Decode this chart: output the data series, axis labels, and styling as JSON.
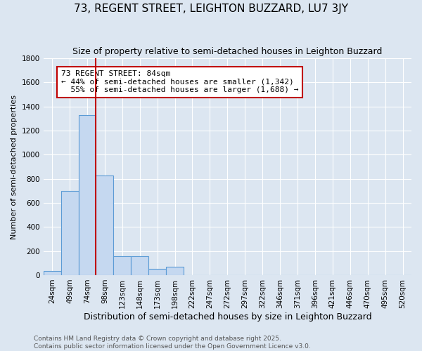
{
  "title": "73, REGENT STREET, LEIGHTON BUZZARD, LU7 3JY",
  "subtitle": "Size of property relative to semi-detached houses in Leighton Buzzard",
  "xlabel": "Distribution of semi-detached houses by size in Leighton Buzzard",
  "ylabel": "Number of semi-detached properties",
  "categories": [
    "24sqm",
    "49sqm",
    "74sqm",
    "98sqm",
    "123sqm",
    "148sqm",
    "173sqm",
    "198sqm",
    "222sqm",
    "247sqm",
    "272sqm",
    "297sqm",
    "322sqm",
    "346sqm",
    "371sqm",
    "396sqm",
    "421sqm",
    "446sqm",
    "470sqm",
    "495sqm",
    "520sqm"
  ],
  "values": [
    35,
    700,
    1330,
    830,
    160,
    155,
    55,
    70,
    0,
    0,
    0,
    0,
    0,
    0,
    0,
    0,
    0,
    0,
    0,
    0,
    0
  ],
  "bar_color": "#c5d8f0",
  "bar_edge_color": "#5b9bd5",
  "vline_color": "#c00000",
  "vline_x_index": 2.5,
  "annotation_line1": "73 REGENT STREET: 84sqm",
  "annotation_line2": "← 44% of semi-detached houses are smaller (1,342)",
  "annotation_line3": "  55% of semi-detached houses are larger (1,688) →",
  "annotation_box_color": "#ffffff",
  "annotation_box_edge": "#c00000",
  "ylim": [
    0,
    1800
  ],
  "yticks": [
    0,
    200,
    400,
    600,
    800,
    1000,
    1200,
    1400,
    1600,
    1800
  ],
  "bg_color": "#dce6f1",
  "footer": "Contains HM Land Registry data © Crown copyright and database right 2025.\nContains public sector information licensed under the Open Government Licence v3.0.",
  "title_fontsize": 11,
  "subtitle_fontsize": 9,
  "xlabel_fontsize": 9,
  "ylabel_fontsize": 8,
  "tick_fontsize": 7.5,
  "footer_fontsize": 6.5,
  "annot_fontsize": 8
}
